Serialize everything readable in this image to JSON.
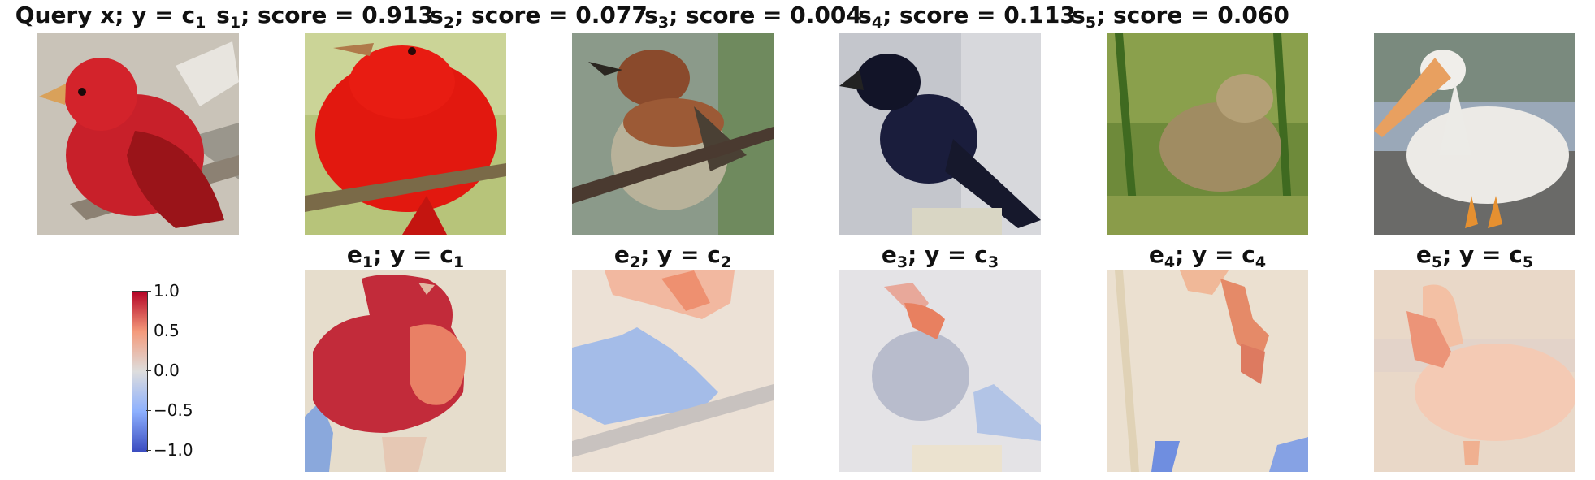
{
  "top_row": [
    {
      "label": "Query x; y = c",
      "sub": "1"
    },
    {
      "label": "s",
      "sub": "1",
      "rest": "; score = 0.913"
    },
    {
      "label": "s",
      "sub": "2",
      "rest": "; score = 0.077"
    },
    {
      "label": "s",
      "sub": "3",
      "rest": "; score = 0.004"
    },
    {
      "label": "s",
      "sub": "4",
      "rest": "; score = 0.113"
    },
    {
      "label": "s",
      "sub": "5",
      "rest": "; score = 0.060"
    }
  ],
  "bottom_row": [
    {
      "label": "e",
      "sub": "1",
      "mid": "; y = c",
      "sub2": "1"
    },
    {
      "label": "e",
      "sub": "2",
      "mid": "; y = c",
      "sub2": "2"
    },
    {
      "label": "e",
      "sub": "3",
      "mid": "; y = c",
      "sub2": "3"
    },
    {
      "label": "e",
      "sub": "4",
      "mid": "; y = c",
      "sub2": "4"
    },
    {
      "label": "e",
      "sub": "5",
      "mid": "; y = c",
      "sub2": "5"
    }
  ],
  "colorbar": {
    "ticks": [
      "1.0",
      "0.5",
      "0.0",
      "−0.5",
      "−1.0"
    ],
    "colors": {
      "high": "#b40426",
      "mid": "#dddddd",
      "low": "#3b4cc0"
    }
  }
}
